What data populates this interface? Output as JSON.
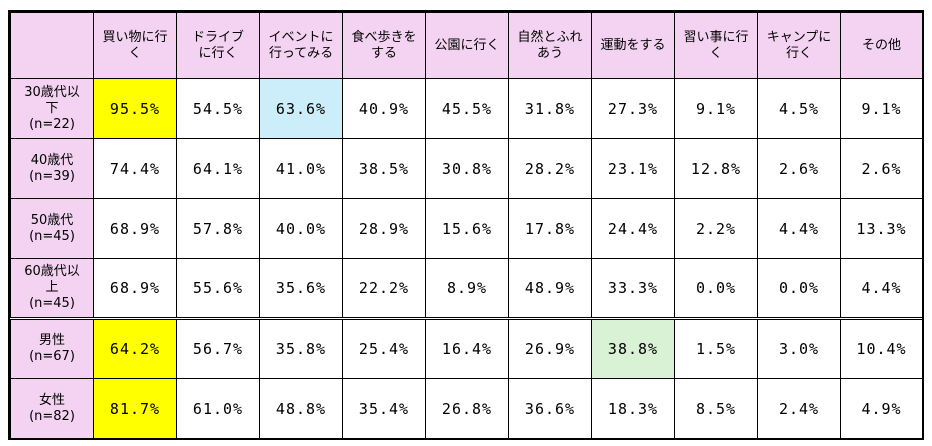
{
  "columns": [
    [
      "買い物に行",
      "く"
    ],
    [
      "ドライブ",
      "に行く"
    ],
    [
      "イベントに",
      "行ってみる"
    ],
    [
      "食べ歩きを",
      "する"
    ],
    [
      "公園に行く"
    ],
    [
      "自然とふれ",
      "あう"
    ],
    [
      "運動をする"
    ],
    [
      "習い事に行",
      "く"
    ],
    [
      "キャンプに",
      "行く"
    ],
    [
      "その他"
    ]
  ],
  "rows": [
    {
      "label": [
        "30歳代以",
        "下",
        "(n=22)"
      ],
      "values": [
        "95.5%",
        "54.5%",
        "63.6%",
        "40.9%",
        "45.5%",
        "31.8%",
        "27.3%",
        "9.1%",
        "4.5%",
        "9.1%"
      ],
      "highlight": {
        "0": "#ffff00",
        "2": "#cbeefa"
      }
    },
    {
      "label": [
        "40歳代",
        "(n=39)"
      ],
      "values": [
        "74.4%",
        "64.1%",
        "41.0%",
        "38.5%",
        "30.8%",
        "28.2%",
        "23.1%",
        "12.8%",
        "2.6%",
        "2.6%"
      ],
      "highlight": {}
    },
    {
      "label": [
        "50歳代",
        "(n=45)"
      ],
      "values": [
        "68.9%",
        "57.8%",
        "40.0%",
        "28.9%",
        "15.6%",
        "17.8%",
        "24.4%",
        "2.2%",
        "4.4%",
        "13.3%"
      ],
      "highlight": {}
    },
    {
      "label": [
        "60歳代以",
        "上",
        "(n=45)"
      ],
      "values": [
        "68.9%",
        "55.6%",
        "35.6%",
        "22.2%",
        "8.9%",
        "48.9%",
        "33.3%",
        "0.0%",
        "0.0%",
        "4.4%"
      ],
      "highlight": {}
    },
    {
      "label": [
        "男性",
        "(n=67)"
      ],
      "values": [
        "64.2%",
        "56.7%",
        "35.8%",
        "25.4%",
        "16.4%",
        "26.9%",
        "38.8%",
        "1.5%",
        "3.0%",
        "10.4%"
      ],
      "highlight": {
        "0": "#ffff00",
        "6": "#d9f1d4"
      },
      "separator": true
    },
    {
      "label": [
        "女性",
        "(n=82)"
      ],
      "values": [
        "81.7%",
        "61.0%",
        "48.8%",
        "35.4%",
        "26.8%",
        "36.6%",
        "18.3%",
        "8.5%",
        "2.4%",
        "4.9%"
      ],
      "highlight": {
        "0": "#ffff00"
      }
    }
  ]
}
